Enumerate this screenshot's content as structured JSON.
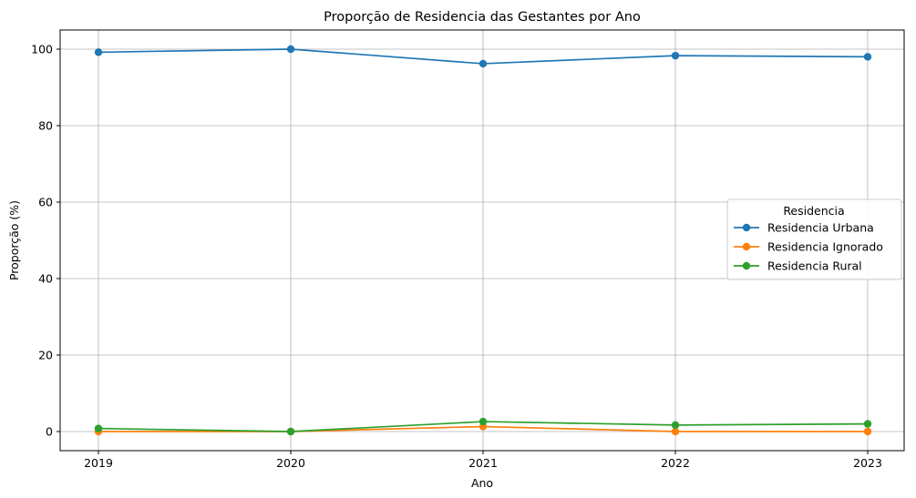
{
  "chart_data": {
    "type": "line",
    "title": "Proporção de Residencia das Gestantes por Ano",
    "xlabel": "Ano",
    "ylabel": "Proporção (%)",
    "x": [
      "2019",
      "2020",
      "2021",
      "2022",
      "2023"
    ],
    "yticks": [
      "0",
      "20",
      "40",
      "60",
      "80",
      "100"
    ],
    "ylim": [
      -5,
      105
    ],
    "grid": true,
    "legend": {
      "title": "Residencia",
      "placement": "center-right"
    },
    "series": [
      {
        "name": "Residencia Urbana",
        "color": "#1f77b4",
        "values": [
          99.2,
          100.0,
          96.2,
          98.3,
          98.0
        ]
      },
      {
        "name": "Residencia Ignorado",
        "color": "#ff7f0e",
        "values": [
          0.0,
          0.0,
          1.3,
          0.0,
          0.0
        ]
      },
      {
        "name": "Residencia Rural",
        "color": "#2ca02c",
        "values": [
          0.8,
          0.0,
          2.6,
          1.7,
          2.0
        ]
      }
    ]
  }
}
